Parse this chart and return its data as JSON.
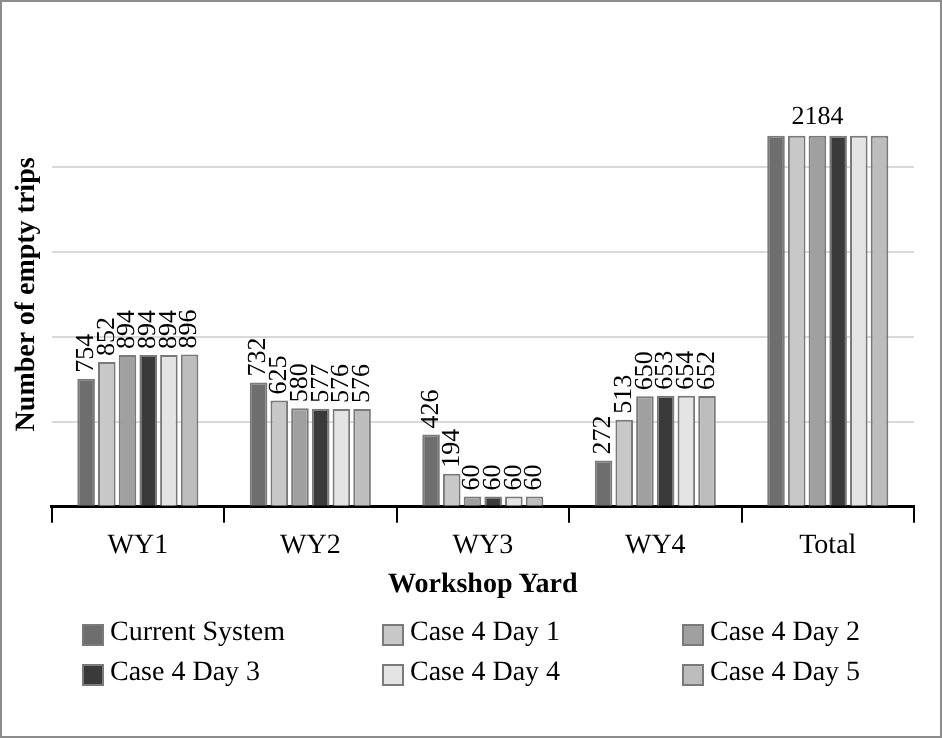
{
  "chart_data": {
    "type": "bar",
    "xlabel": "Workshop Yard",
    "ylabel": "Number of empty trips",
    "categories": [
      "WY1",
      "WY2",
      "WY3",
      "WY4",
      "Total"
    ],
    "series": [
      {
        "name": "Current System",
        "color": "#6e6e6e",
        "values": [
          754,
          732,
          426,
          272,
          2184
        ],
        "value_labels": [
          "754",
          "732",
          "426",
          "272",
          null
        ]
      },
      {
        "name": "Case 4 Day 1",
        "color": "#c8c8c8",
        "values": [
          852,
          625,
          194,
          513,
          2184
        ],
        "value_labels": [
          "852",
          "625",
          "194",
          "513",
          null
        ]
      },
      {
        "name": "Case 4 Day 2",
        "color": "#a0a0a0",
        "values": [
          894,
          580,
          60,
          650,
          2184
        ],
        "value_labels": [
          "894",
          "580",
          "60",
          "650",
          "2184"
        ]
      },
      {
        "name": "Case 4 Day 3",
        "color": "#3a3a3a",
        "values": [
          894,
          577,
          60,
          653,
          2184
        ],
        "value_labels": [
          "894",
          "577",
          "60",
          "653",
          null
        ]
      },
      {
        "name": "Case 4 Day 4",
        "color": "#e4e4e4",
        "values": [
          894,
          576,
          60,
          654,
          2184
        ],
        "value_labels": [
          "894",
          "576",
          "60",
          "654",
          null
        ]
      },
      {
        "name": "Case 4 Day 5",
        "color": "#bdbdbd",
        "values": [
          896,
          576,
          60,
          652,
          2184
        ],
        "value_labels": [
          "896",
          "576",
          "60",
          "652",
          null
        ]
      }
    ],
    "yticks": [
      {
        "value": 0,
        "label": null
      },
      {
        "value": 500,
        "label": null
      },
      {
        "value": 1000,
        "label": null
      },
      {
        "value": 1500,
        "label": null
      },
      {
        "value": 2000,
        "label": null
      }
    ],
    "grid": "y",
    "legend": "bottom",
    "tick_labels": "x"
  }
}
